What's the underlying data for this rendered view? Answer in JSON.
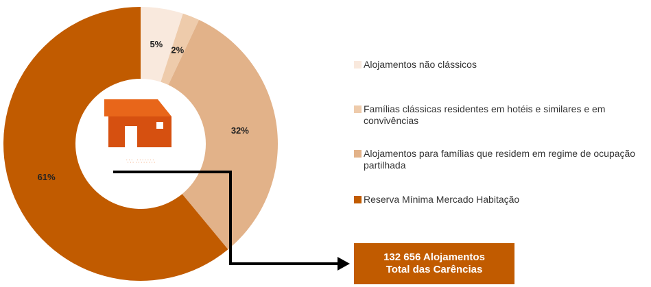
{
  "chart_data": {
    "type": "pie",
    "categories": [
      "Alojamentos não clássicos",
      "Famílias clássicas residentes em hotéis e similares e em convivências",
      "Alojamentos para famílias que residem em regime de ocupação partilhada",
      "Reserva Mínima Mercado Habitação"
    ],
    "values": [
      5,
      2,
      32,
      61
    ],
    "value_labels": [
      "5%",
      "2%",
      "32%",
      "61%"
    ],
    "colors": [
      "#f9e9dd",
      "#eecbab",
      "#e2b289",
      "#c15b00"
    ],
    "annotation": [
      "132 656 Alojamentos",
      "Total das Carências"
    ]
  }
}
